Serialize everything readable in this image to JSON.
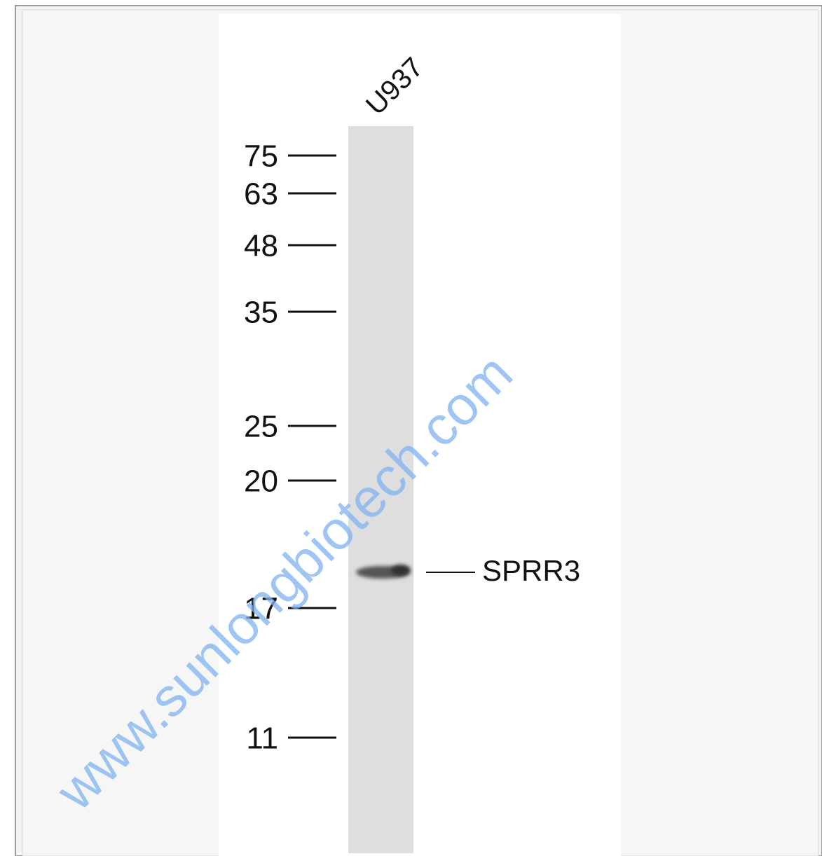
{
  "lane_label": "U937",
  "markers": [
    "75",
    "63",
    "48",
    "35",
    "25",
    "20",
    "17",
    "11"
  ],
  "band_label": "SPRR3",
  "watermark": "www.sunlongbiotech.com"
}
